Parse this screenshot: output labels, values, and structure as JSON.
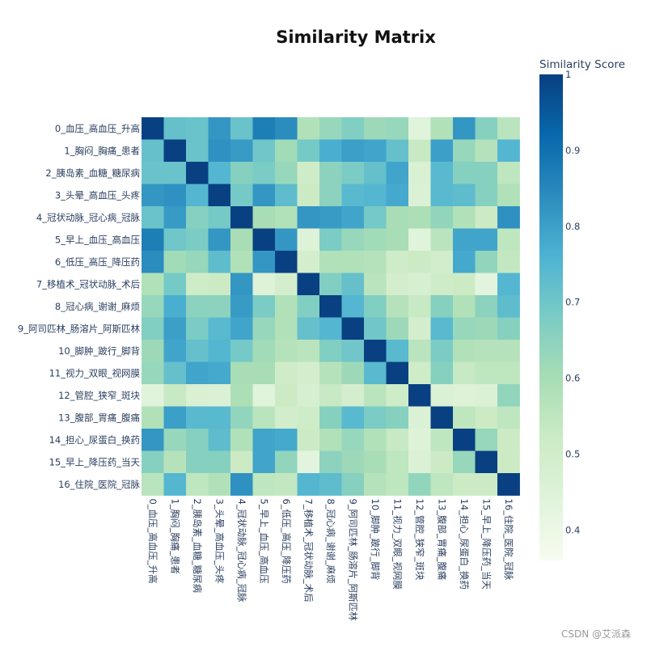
{
  "chart_data": {
    "type": "heatmap",
    "title": "Similarity Matrix",
    "colorbar": {
      "title": "Similarity Score",
      "ticks": [
        0.4,
        0.5,
        0.6,
        0.7,
        0.8,
        0.9,
        1
      ],
      "tick_labels": [
        "0.4",
        "0.5",
        "0.6",
        "0.7",
        "0.8",
        "0.9",
        "1"
      ],
      "range": [
        0.36,
        1.0
      ]
    },
    "colorscale": [
      "#f7fcf0",
      "#e0f3db",
      "#ccebc5",
      "#a8ddb5",
      "#7bccc4",
      "#4eb3d3",
      "#2b8cbe",
      "#0868ac",
      "#084081"
    ],
    "labels": [
      "0_血压_高血压_升高",
      "1_胸闷_胸痛_患者",
      "2_胰岛素_血糖_糖尿病",
      "3_头晕_高血压_头疼",
      "4_冠状动脉_冠心病_冠脉",
      "5_早上_血压_高血压",
      "6_低压_高压_降压药",
      "7_移植术_冠状动脉_术后",
      "8_冠心病_谢谢_麻烦",
      "9_阿司匹林_肠溶片_阿斯匹林",
      "10_脚肿_跛行_脚背",
      "11_视力_双眼_视网膜",
      "12_管腔_狭窄_斑块",
      "13_腹部_胃痛_腹痛",
      "14_担心_尿蛋白_换药",
      "15_早上_降压药_当天",
      "16_住院_医院_冠脉"
    ],
    "z": [
      [
        1.0,
        0.72,
        0.71,
        0.82,
        0.71,
        0.87,
        0.84,
        0.58,
        0.63,
        0.67,
        0.62,
        0.63,
        0.44,
        0.58,
        0.82,
        0.66,
        0.56
      ],
      [
        0.72,
        1.0,
        0.71,
        0.83,
        0.81,
        0.7,
        0.61,
        0.69,
        0.77,
        0.8,
        0.79,
        0.72,
        0.53,
        0.8,
        0.63,
        0.57,
        0.75
      ],
      [
        0.71,
        0.71,
        1.0,
        0.75,
        0.66,
        0.68,
        0.63,
        0.51,
        0.65,
        0.68,
        0.72,
        0.79,
        0.47,
        0.74,
        0.66,
        0.66,
        0.55
      ],
      [
        0.82,
        0.83,
        0.75,
        1.0,
        0.69,
        0.82,
        0.73,
        0.52,
        0.65,
        0.74,
        0.75,
        0.78,
        0.46,
        0.74,
        0.73,
        0.66,
        0.58
      ],
      [
        0.71,
        0.81,
        0.66,
        0.69,
        1.0,
        0.6,
        0.58,
        0.82,
        0.81,
        0.79,
        0.69,
        0.6,
        0.59,
        0.64,
        0.58,
        0.52,
        0.83
      ],
      [
        0.87,
        0.7,
        0.68,
        0.82,
        0.6,
        1.0,
        0.82,
        0.45,
        0.68,
        0.63,
        0.61,
        0.6,
        0.44,
        0.56,
        0.79,
        0.79,
        0.55
      ],
      [
        0.84,
        0.61,
        0.63,
        0.73,
        0.58,
        0.82,
        1.0,
        0.49,
        0.58,
        0.58,
        0.57,
        0.51,
        0.52,
        0.5,
        0.78,
        0.64,
        0.54
      ],
      [
        0.58,
        0.69,
        0.51,
        0.52,
        0.82,
        0.45,
        0.49,
        1.0,
        0.67,
        0.72,
        0.56,
        0.49,
        0.48,
        0.51,
        0.52,
        0.43,
        0.75
      ],
      [
        0.63,
        0.77,
        0.65,
        0.65,
        0.81,
        0.68,
        0.58,
        0.67,
        1.0,
        0.75,
        0.67,
        0.57,
        0.53,
        0.66,
        0.58,
        0.65,
        0.73
      ],
      [
        0.67,
        0.8,
        0.68,
        0.74,
        0.79,
        0.63,
        0.58,
        0.72,
        0.75,
        1.0,
        0.7,
        0.62,
        0.49,
        0.74,
        0.63,
        0.62,
        0.66
      ],
      [
        0.62,
        0.79,
        0.72,
        0.75,
        0.69,
        0.61,
        0.57,
        0.56,
        0.67,
        0.7,
        1.0,
        0.74,
        0.56,
        0.68,
        0.58,
        0.57,
        0.57
      ],
      [
        0.63,
        0.72,
        0.79,
        0.78,
        0.6,
        0.6,
        0.51,
        0.49,
        0.57,
        0.62,
        0.74,
        1.0,
        0.51,
        0.66,
        0.53,
        0.55,
        0.55
      ],
      [
        0.44,
        0.53,
        0.47,
        0.46,
        0.59,
        0.44,
        0.52,
        0.48,
        0.53,
        0.49,
        0.56,
        0.51,
        1.0,
        0.46,
        0.45,
        0.46,
        0.64
      ],
      [
        0.58,
        0.8,
        0.74,
        0.74,
        0.64,
        0.56,
        0.5,
        0.51,
        0.66,
        0.74,
        0.68,
        0.66,
        0.46,
        1.0,
        0.55,
        0.52,
        0.55
      ],
      [
        0.82,
        0.63,
        0.66,
        0.73,
        0.58,
        0.79,
        0.78,
        0.52,
        0.58,
        0.63,
        0.58,
        0.53,
        0.45,
        0.55,
        1.0,
        0.63,
        0.52
      ],
      [
        0.66,
        0.57,
        0.66,
        0.66,
        0.52,
        0.79,
        0.64,
        0.43,
        0.65,
        0.62,
        0.6,
        0.55,
        0.46,
        0.52,
        0.63,
        1.0,
        0.52
      ],
      [
        0.56,
        0.75,
        0.55,
        0.58,
        0.83,
        0.55,
        0.54,
        0.75,
        0.73,
        0.66,
        0.57,
        0.55,
        0.64,
        0.55,
        0.52,
        0.52,
        1.0
      ]
    ]
  },
  "watermark": "CSDN @艾派森"
}
